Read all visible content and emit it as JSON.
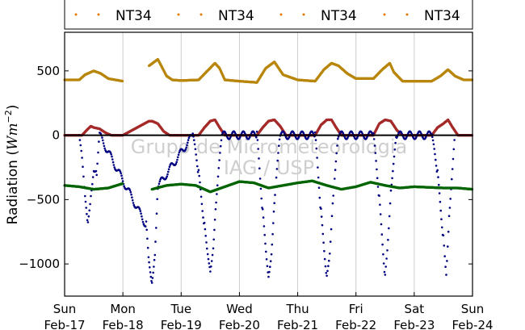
{
  "chart_data": {
    "type": "scatter",
    "ylabel_main": "Radiation (",
    "ylabel_unit": "Wm",
    "ylabel_exp": "−2",
    "ylabel_close": ")",
    "ylim": [
      -1250,
      800
    ],
    "xlim": [
      0,
      7
    ],
    "yticks": [
      500,
      0,
      -500,
      -1000
    ],
    "ytick_labels": [
      "500",
      "0",
      "−500",
      "−1000"
    ],
    "x_ticks": [
      {
        "x": 0,
        "day": "Sun",
        "date": "Feb-17"
      },
      {
        "x": 1,
        "day": "Mon",
        "date": "Feb-18"
      },
      {
        "x": 2,
        "day": "Tue",
        "date": "Feb-19"
      },
      {
        "x": 3,
        "day": "Wed",
        "date": "Feb-20"
      },
      {
        "x": 4,
        "day": "Thu",
        "date": "Feb-21"
      },
      {
        "x": 5,
        "day": "Fri",
        "date": "Feb-22"
      },
      {
        "x": 6,
        "day": "Sat",
        "date": "Feb-23"
      },
      {
        "x": 7,
        "day": "Sun",
        "date": "Feb-24"
      }
    ],
    "grid": "vertical",
    "legend_placement": "top",
    "legend": [
      "NT34",
      "NT34",
      "NT34",
      "NT34"
    ],
    "watermark": [
      "Grupo de Micrometeorologia",
      "IAG / USP"
    ],
    "series": [
      {
        "color": "#b8860b",
        "x": [
          0.0,
          0.25,
          0.35,
          0.5,
          0.62,
          0.75,
          1.0,
          1.25,
          1.45,
          1.6,
          1.75,
          1.85,
          2.0,
          2.3,
          2.45,
          2.58,
          2.66,
          2.75,
          3.0,
          3.3,
          3.45,
          3.6,
          3.75,
          4.0,
          4.3,
          4.45,
          4.58,
          4.7,
          4.85,
          5.0,
          5.3,
          5.45,
          5.58,
          5.65,
          5.8,
          6.0,
          6.3,
          6.45,
          6.58,
          6.7,
          6.85,
          7.0
        ],
        "y": [
          430,
          430,
          470,
          500,
          480,
          440,
          420,
          null,
          540,
          590,
          460,
          430,
          425,
          430,
          500,
          560,
          520,
          430,
          420,
          410,
          520,
          570,
          470,
          430,
          420,
          510,
          560,
          540,
          480,
          440,
          440,
          510,
          560,
          490,
          420,
          420,
          420,
          460,
          510,
          460,
          430,
          430
        ]
      },
      {
        "color": "#a52a2a",
        "x": [
          0.0,
          0.3,
          0.38,
          0.45,
          0.5,
          0.6,
          0.7,
          0.8,
          1.0,
          1.45,
          1.5,
          1.6,
          1.7,
          1.8,
          2.0,
          2.3,
          2.4,
          2.5,
          2.58,
          2.66,
          2.75,
          3.0,
          3.3,
          3.4,
          3.5,
          3.6,
          3.7,
          3.8,
          4.0,
          4.3,
          4.4,
          4.5,
          4.58,
          4.66,
          4.75,
          5.0,
          5.3,
          5.4,
          5.5,
          5.6,
          5.7,
          5.8,
          6.0,
          6.3,
          6.4,
          6.5,
          6.58,
          6.66,
          6.75,
          7.0
        ],
        "y": [
          0,
          0,
          40,
          70,
          60,
          50,
          20,
          0,
          0,
          110,
          110,
          90,
          30,
          0,
          0,
          0,
          60,
          110,
          120,
          60,
          0,
          0,
          0,
          60,
          110,
          120,
          70,
          0,
          0,
          0,
          80,
          120,
          120,
          60,
          0,
          0,
          0,
          90,
          120,
          110,
          40,
          0,
          0,
          0,
          60,
          90,
          120,
          60,
          0,
          0
        ]
      },
      {
        "color": "#000080",
        "x": [
          0.25,
          0.3,
          0.35,
          0.4,
          0.45,
          0.5,
          0.55,
          0.6,
          1.4,
          1.45,
          1.5,
          1.55,
          1.6,
          2.2,
          2.3,
          2.4,
          2.5,
          2.55,
          2.6,
          2.7,
          3.3,
          3.4,
          3.5,
          3.55,
          3.6,
          3.7,
          4.3,
          4.4,
          4.5,
          4.55,
          4.6,
          4.7,
          5.3,
          5.4,
          5.5,
          5.55,
          5.6,
          5.7,
          6.3,
          6.4,
          6.5,
          6.55,
          6.6,
          6.7
        ],
        "y": [
          0,
          -200,
          -500,
          -680,
          -450,
          -250,
          -300,
          0,
          -700,
          -1000,
          -1130,
          -900,
          -400,
          0,
          -300,
          -700,
          -1050,
          -850,
          -500,
          0,
          0,
          -600,
          -1100,
          -900,
          -500,
          0,
          0,
          -600,
          -1100,
          -900,
          -500,
          0,
          0,
          -500,
          -1100,
          -800,
          -400,
          0,
          0,
          -300,
          -800,
          -1080,
          -600,
          0
        ]
      },
      {
        "color": "#006400",
        "x": [
          0.0,
          0.25,
          0.5,
          0.75,
          1.0,
          1.25,
          1.5,
          1.75,
          2.0,
          2.25,
          2.5,
          2.75,
          3.0,
          3.25,
          3.5,
          3.75,
          4.0,
          4.25,
          4.5,
          4.75,
          5.0,
          5.25,
          5.5,
          5.75,
          6.0,
          6.25,
          6.5,
          6.75,
          7.0
        ],
        "y": [
          -390,
          -400,
          -420,
          -410,
          -375,
          null,
          -420,
          -390,
          -380,
          -390,
          -440,
          -400,
          -360,
          -370,
          -410,
          -390,
          -370,
          -355,
          -390,
          -420,
          -400,
          -365,
          -390,
          -410,
          -400,
          -405,
          -410,
          -410,
          -420
        ]
      }
    ],
    "zero_line": 0
  }
}
